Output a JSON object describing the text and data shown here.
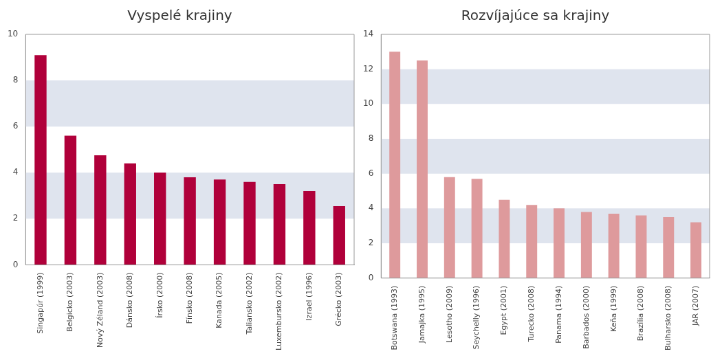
{
  "chart_data": [
    {
      "type": "bar",
      "title": "Vyspelé krajiny",
      "categories": [
        "Singapúr (1999)",
        "Belgicko (2003)",
        "Nový Zéland (2003)",
        "Dánsko (2008)",
        "Írsko (2000)",
        "Fínsko (2008)",
        "Kanada (2005)",
        "Taliansko (2002)",
        "Luxembursko (2002)",
        "Izrael (1996)",
        "Grécko (2003)"
      ],
      "values": [
        9.1,
        5.6,
        4.75,
        4.4,
        4.0,
        3.8,
        3.7,
        3.6,
        3.5,
        3.2,
        2.55
      ],
      "color": "#b0003a",
      "ylim": [
        0,
        10
      ],
      "yticks": [
        0,
        2,
        4,
        6,
        8,
        10
      ],
      "grid": false,
      "bands": [
        {
          "axis": "y",
          "from": 2,
          "to": 4,
          "color": "#dfe4ee"
        },
        {
          "axis": "y",
          "from": 6,
          "to": 8,
          "color": "#dfe4ee"
        }
      ]
    },
    {
      "type": "bar",
      "title": "Rozvíjajúce sa krajiny",
      "categories": [
        "Botswana (1993)",
        "Jamajka (1995)",
        "Lesotho (2009)",
        "Seychelly (1996)",
        "Egypt (2001)",
        "Turecko (2008)",
        "Panama (1994)",
        "Barbados (2000)",
        "Keňa (1999)",
        "Brazília (2008)",
        "Bulharsko (2008)",
        "JAR (2007)"
      ],
      "values": [
        13.0,
        12.5,
        5.8,
        5.7,
        4.5,
        4.2,
        4.0,
        3.8,
        3.7,
        3.6,
        3.5,
        3.2
      ],
      "color": "#de9a9c",
      "ylim": [
        0,
        14
      ],
      "yticks": [
        0,
        2,
        4,
        6,
        8,
        10,
        12,
        14
      ],
      "grid": false,
      "bands": [
        {
          "axis": "y",
          "from": 2,
          "to": 4,
          "color": "#dfe4ee"
        },
        {
          "axis": "y",
          "from": 6,
          "to": 8,
          "color": "#dfe4ee"
        },
        {
          "axis": "y",
          "from": 10,
          "to": 12,
          "color": "#dfe4ee"
        }
      ]
    }
  ]
}
